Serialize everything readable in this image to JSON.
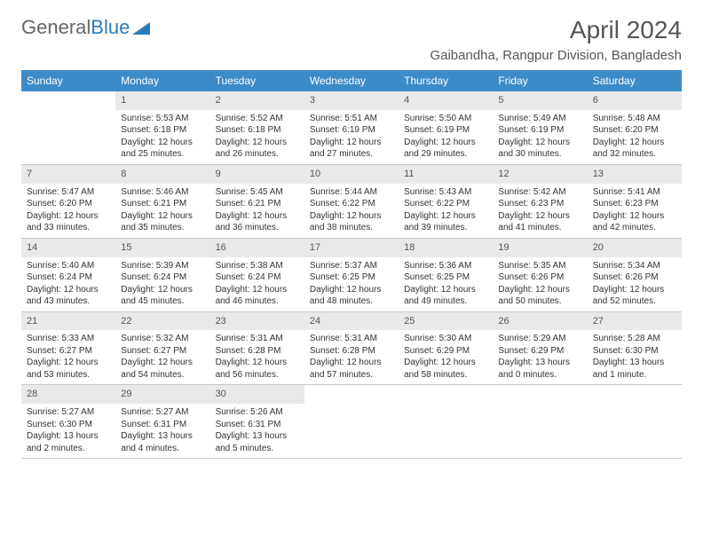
{
  "brand": {
    "part1": "General",
    "part2": "Blue"
  },
  "title": "April 2024",
  "location": "Gaibandha, Rangpur Division, Bangladesh",
  "colors": {
    "header_bg": "#3b8bc8",
    "header_text": "#ffffff",
    "daynum_bg": "#e9e9e9",
    "border": "#c8c8c8",
    "text": "#333333",
    "brand_gray": "#666666",
    "brand_blue": "#2b7bba"
  },
  "columns": [
    "Sunday",
    "Monday",
    "Tuesday",
    "Wednesday",
    "Thursday",
    "Friday",
    "Saturday"
  ],
  "weeks": [
    [
      {
        "n": "",
        "sr": "",
        "ss": "",
        "dl": "",
        "empty": true
      },
      {
        "n": "1",
        "sr": "Sunrise: 5:53 AM",
        "ss": "Sunset: 6:18 PM",
        "dl": "Daylight: 12 hours and 25 minutes."
      },
      {
        "n": "2",
        "sr": "Sunrise: 5:52 AM",
        "ss": "Sunset: 6:18 PM",
        "dl": "Daylight: 12 hours and 26 minutes."
      },
      {
        "n": "3",
        "sr": "Sunrise: 5:51 AM",
        "ss": "Sunset: 6:19 PM",
        "dl": "Daylight: 12 hours and 27 minutes."
      },
      {
        "n": "4",
        "sr": "Sunrise: 5:50 AM",
        "ss": "Sunset: 6:19 PM",
        "dl": "Daylight: 12 hours and 29 minutes."
      },
      {
        "n": "5",
        "sr": "Sunrise: 5:49 AM",
        "ss": "Sunset: 6:19 PM",
        "dl": "Daylight: 12 hours and 30 minutes."
      },
      {
        "n": "6",
        "sr": "Sunrise: 5:48 AM",
        "ss": "Sunset: 6:20 PM",
        "dl": "Daylight: 12 hours and 32 minutes."
      }
    ],
    [
      {
        "n": "7",
        "sr": "Sunrise: 5:47 AM",
        "ss": "Sunset: 6:20 PM",
        "dl": "Daylight: 12 hours and 33 minutes."
      },
      {
        "n": "8",
        "sr": "Sunrise: 5:46 AM",
        "ss": "Sunset: 6:21 PM",
        "dl": "Daylight: 12 hours and 35 minutes."
      },
      {
        "n": "9",
        "sr": "Sunrise: 5:45 AM",
        "ss": "Sunset: 6:21 PM",
        "dl": "Daylight: 12 hours and 36 minutes."
      },
      {
        "n": "10",
        "sr": "Sunrise: 5:44 AM",
        "ss": "Sunset: 6:22 PM",
        "dl": "Daylight: 12 hours and 38 minutes."
      },
      {
        "n": "11",
        "sr": "Sunrise: 5:43 AM",
        "ss": "Sunset: 6:22 PM",
        "dl": "Daylight: 12 hours and 39 minutes."
      },
      {
        "n": "12",
        "sr": "Sunrise: 5:42 AM",
        "ss": "Sunset: 6:23 PM",
        "dl": "Daylight: 12 hours and 41 minutes."
      },
      {
        "n": "13",
        "sr": "Sunrise: 5:41 AM",
        "ss": "Sunset: 6:23 PM",
        "dl": "Daylight: 12 hours and 42 minutes."
      }
    ],
    [
      {
        "n": "14",
        "sr": "Sunrise: 5:40 AM",
        "ss": "Sunset: 6:24 PM",
        "dl": "Daylight: 12 hours and 43 minutes."
      },
      {
        "n": "15",
        "sr": "Sunrise: 5:39 AM",
        "ss": "Sunset: 6:24 PM",
        "dl": "Daylight: 12 hours and 45 minutes."
      },
      {
        "n": "16",
        "sr": "Sunrise: 5:38 AM",
        "ss": "Sunset: 6:24 PM",
        "dl": "Daylight: 12 hours and 46 minutes."
      },
      {
        "n": "17",
        "sr": "Sunrise: 5:37 AM",
        "ss": "Sunset: 6:25 PM",
        "dl": "Daylight: 12 hours and 48 minutes."
      },
      {
        "n": "18",
        "sr": "Sunrise: 5:36 AM",
        "ss": "Sunset: 6:25 PM",
        "dl": "Daylight: 12 hours and 49 minutes."
      },
      {
        "n": "19",
        "sr": "Sunrise: 5:35 AM",
        "ss": "Sunset: 6:26 PM",
        "dl": "Daylight: 12 hours and 50 minutes."
      },
      {
        "n": "20",
        "sr": "Sunrise: 5:34 AM",
        "ss": "Sunset: 6:26 PM",
        "dl": "Daylight: 12 hours and 52 minutes."
      }
    ],
    [
      {
        "n": "21",
        "sr": "Sunrise: 5:33 AM",
        "ss": "Sunset: 6:27 PM",
        "dl": "Daylight: 12 hours and 53 minutes."
      },
      {
        "n": "22",
        "sr": "Sunrise: 5:32 AM",
        "ss": "Sunset: 6:27 PM",
        "dl": "Daylight: 12 hours and 54 minutes."
      },
      {
        "n": "23",
        "sr": "Sunrise: 5:31 AM",
        "ss": "Sunset: 6:28 PM",
        "dl": "Daylight: 12 hours and 56 minutes."
      },
      {
        "n": "24",
        "sr": "Sunrise: 5:31 AM",
        "ss": "Sunset: 6:28 PM",
        "dl": "Daylight: 12 hours and 57 minutes."
      },
      {
        "n": "25",
        "sr": "Sunrise: 5:30 AM",
        "ss": "Sunset: 6:29 PM",
        "dl": "Daylight: 12 hours and 58 minutes."
      },
      {
        "n": "26",
        "sr": "Sunrise: 5:29 AM",
        "ss": "Sunset: 6:29 PM",
        "dl": "Daylight: 13 hours and 0 minutes."
      },
      {
        "n": "27",
        "sr": "Sunrise: 5:28 AM",
        "ss": "Sunset: 6:30 PM",
        "dl": "Daylight: 13 hours and 1 minute."
      }
    ],
    [
      {
        "n": "28",
        "sr": "Sunrise: 5:27 AM",
        "ss": "Sunset: 6:30 PM",
        "dl": "Daylight: 13 hours and 2 minutes."
      },
      {
        "n": "29",
        "sr": "Sunrise: 5:27 AM",
        "ss": "Sunset: 6:31 PM",
        "dl": "Daylight: 13 hours and 4 minutes."
      },
      {
        "n": "30",
        "sr": "Sunrise: 5:26 AM",
        "ss": "Sunset: 6:31 PM",
        "dl": "Daylight: 13 hours and 5 minutes."
      },
      {
        "n": "",
        "sr": "",
        "ss": "",
        "dl": "",
        "empty": true
      },
      {
        "n": "",
        "sr": "",
        "ss": "",
        "dl": "",
        "empty": true
      },
      {
        "n": "",
        "sr": "",
        "ss": "",
        "dl": "",
        "empty": true
      },
      {
        "n": "",
        "sr": "",
        "ss": "",
        "dl": "",
        "empty": true
      }
    ]
  ]
}
